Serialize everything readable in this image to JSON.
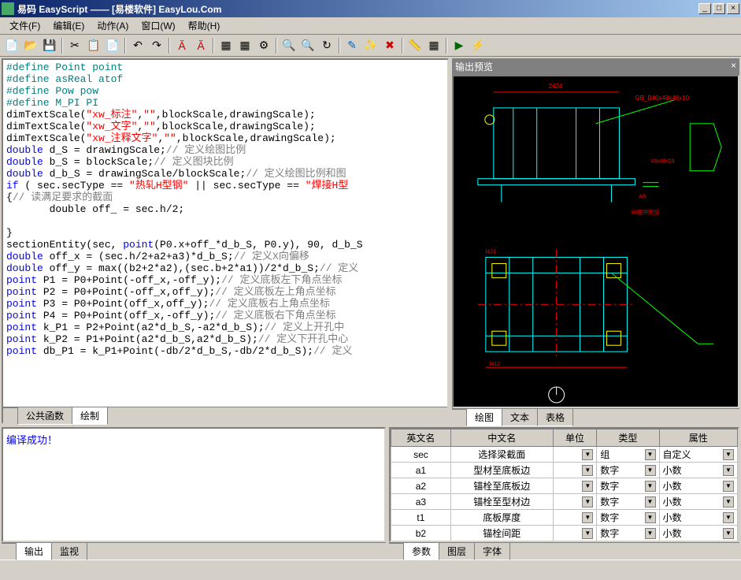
{
  "window": {
    "title": "易码 EasyScript —— [易楼软件] EasyLou.Com"
  },
  "menu": {
    "file": "文件(F)",
    "edit": "编辑(E)",
    "action": "动作(A)",
    "window": "窗口(W)",
    "help": "帮助(H)"
  },
  "code_tabs": {
    "tab1": "公共函数",
    "tab2": "绘制"
  },
  "preview_title": "输出预览",
  "preview_tabs": {
    "tab1": "绘图",
    "tab2": "文本",
    "tab3": "表格"
  },
  "output": {
    "message": "编译成功！"
  },
  "output_tabs": {
    "tab1": "输出",
    "tab2": "监视"
  },
  "params_header": {
    "col1": "英文名",
    "col2": "中文名",
    "col3": "单位",
    "col4": "类型",
    "col5": "属性"
  },
  "params_rows": [
    {
      "en": "sec",
      "cn": "选择梁截面",
      "unit": "",
      "type": "组",
      "attr": "自定义"
    },
    {
      "en": "a1",
      "cn": "型材至底板边",
      "unit": "",
      "type": "数字",
      "attr": "小数"
    },
    {
      "en": "a2",
      "cn": "锚栓至底板边",
      "unit": "",
      "type": "数字",
      "attr": "小数"
    },
    {
      "en": "a3",
      "cn": "锚栓至型材边",
      "unit": "",
      "type": "数字",
      "attr": "小数"
    },
    {
      "en": "t1",
      "cn": "底板厚度",
      "unit": "",
      "type": "数字",
      "attr": "小数"
    },
    {
      "en": "b2",
      "cn": "锚栓间距",
      "unit": "",
      "type": "数字",
      "attr": "小数"
    },
    {
      "en": "db",
      "cn": "垫板长或宽",
      "unit": "",
      "type": "数字",
      "attr": "小数"
    }
  ],
  "params_tabs": {
    "tab1": "参数",
    "tab2": "图层",
    "tab3": "字体"
  },
  "side_left": "调试信息",
  "side_right": "参数表",
  "cad": {
    "bg": "#000000",
    "outline_color": "#00ffff",
    "dim_color": "#ff0000",
    "accent_color": "#ffff00",
    "green_color": "#00ff00"
  },
  "code": {
    "l1_a": "#define",
    "l1_b": " Point point",
    "l2_a": "#define",
    "l2_b": " asReal atof",
    "l3_a": "#define",
    "l3_b": " Pow pow",
    "l4_a": "#define",
    "l4_b": " M_PI PI",
    "l5_a": "dimTextScale(",
    "l5_b": "\"xw_标注\"",
    "l5_c": ",",
    "l5_d": "\"\"",
    "l5_e": ",blockScale,drawingScale);",
    "l6_a": "dimTextScale(",
    "l6_b": "\"xw_文字\"",
    "l6_c": ",",
    "l6_d": "\"\"",
    "l6_e": ",blockScale,drawingScale);",
    "l7_a": "dimTextScale(",
    "l7_b": "\"xw_注释文字\"",
    "l7_c": ",",
    "l7_d": "\"\"",
    "l7_e": ",blockScale,drawingScale);",
    "l8_a": "double",
    "l8_b": " d_S = drawingScale;",
    "l8_c": "// 定义绘图比例",
    "l9_a": "double",
    "l9_b": " b_S = blockScale;",
    "l9_c": "// 定义图块比例",
    "l10_a": "double",
    "l10_b": " d_b_S = drawingScale/blockScale;",
    "l10_c": "// 定义绘图比例和图",
    "l11_a": "if",
    "l11_b": " ( sec.secType == ",
    "l11_c": "\"热轧H型钢\"",
    "l11_d": " || sec.secType == ",
    "l11_e": "\"焊接H型",
    "l12_a": "{",
    "l12_b": "// 读满足要求的截面",
    "l13": "       double off_ = sec.h/2;",
    "l14": " ",
    "l15": "}",
    "l16_a": "sectionEntity(sec, ",
    "l16_b": "point",
    "l16_c": "(P0.x+off_*d_b_S, P0.y), 90, d_b_S",
    "l17_a": "double",
    "l17_b": " off_x = (sec.h/2+a2+a3)*d_b_S;",
    "l17_c": "// 定义X向偏移",
    "l18_a": "double",
    "l18_b": " off_y = max((b2+2*a2),(sec.b+2*a1))/2*d_b_S;",
    "l18_c": "// 定义",
    "l19_a": "point",
    "l19_b": " P1 = P0+Point(-off_x,-off_y);",
    "l19_c": "// 定义底板左下角点坐标",
    "l20_a": "point",
    "l20_b": " P2 = P0+Point(-off_x,off_y);",
    "l20_c": "// 定义底板左上角点坐标",
    "l21_a": "point",
    "l21_b": " P3 = P0+Point(off_x,off_y);",
    "l21_c": "// 定义底板右上角点坐标",
    "l22_a": "point",
    "l22_b": " P4 = P0+Point(off_x,-off_y);",
    "l22_c": "// 定义底板右下角点坐标",
    "l23_a": "point",
    "l23_b": " k_P1 = P2+Point(a2*d_b_S,-a2*d_b_S);",
    "l23_c": "// 定义上开孔中",
    "l24_a": "point",
    "l24_b": " k_P2 = P1+Point(a2*d_b_S,a2*d_b_S);",
    "l24_c": "// 定义下开孔中心",
    "l25_a": "point",
    "l25_b": " db_P1 = k_P1+Point(-db/2*d_b_S,-db/2*d_b_S);",
    "l25_c": "// 定义"
  }
}
